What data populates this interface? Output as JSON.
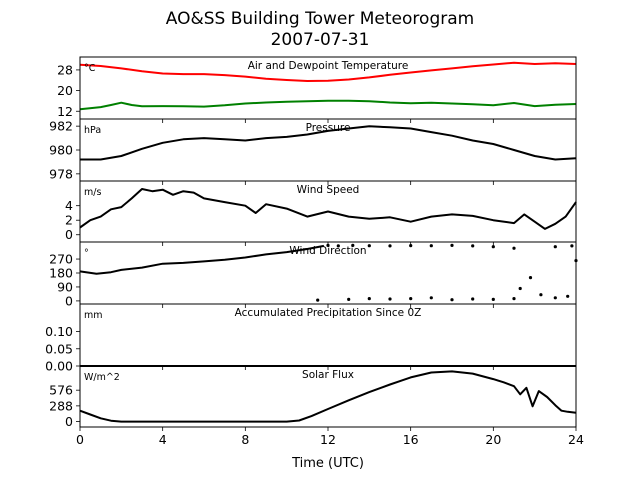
{
  "title": "AO&SS Building Tower Meteorogram",
  "subtitle": "2007-07-31",
  "xlabel": "Time (UTC)",
  "chart_data": {
    "type": "line",
    "x_range": [
      0,
      24
    ],
    "x_ticks": [
      0,
      4,
      8,
      12,
      16,
      20,
      24
    ],
    "x_tick_labels": [
      "0",
      "4",
      "8",
      "12",
      "16",
      "20",
      "24"
    ],
    "panels": [
      {
        "id": "temp",
        "title": "Air and Dewpoint Temperature",
        "unit": "°C",
        "ylim": [
          9,
          33
        ],
        "yticks": [
          12,
          20,
          28
        ],
        "ytick_labels": [
          "12",
          "20",
          "28"
        ],
        "series": [
          {
            "color": "#ff0000",
            "width": 2.0,
            "points": [
              [
                0,
                30
              ],
              [
                1,
                29.5
              ],
              [
                2,
                28.6
              ],
              [
                3,
                27.5
              ],
              [
                4,
                26.6
              ],
              [
                5,
                26.4
              ],
              [
                6,
                26.4
              ],
              [
                7,
                26.0
              ],
              [
                8,
                25.4
              ],
              [
                9,
                24.6
              ],
              [
                10,
                24.1
              ],
              [
                11,
                23.7
              ],
              [
                12,
                23.8
              ],
              [
                13,
                24.3
              ],
              [
                14,
                25.1
              ],
              [
                15,
                26.1
              ],
              [
                16,
                27.0
              ],
              [
                17,
                27.8
              ],
              [
                18,
                28.6
              ],
              [
                19,
                29.4
              ],
              [
                20,
                30.1
              ],
              [
                21,
                30.8
              ],
              [
                22,
                30.3
              ],
              [
                23,
                30.6
              ],
              [
                24,
                30.3
              ]
            ]
          },
          {
            "color": "#008000",
            "width": 2.0,
            "points": [
              [
                0,
                12.8
              ],
              [
                1,
                13.6
              ],
              [
                1.5,
                14.4
              ],
              [
                2,
                15.3
              ],
              [
                2.5,
                14.4
              ],
              [
                3,
                13.9
              ],
              [
                4,
                14.0
              ],
              [
                5,
                13.9
              ],
              [
                6,
                13.8
              ],
              [
                7,
                14.3
              ],
              [
                8,
                15.0
              ],
              [
                9,
                15.4
              ],
              [
                10,
                15.7
              ],
              [
                11,
                15.9
              ],
              [
                12,
                16.1
              ],
              [
                13,
                16.1
              ],
              [
                14,
                15.9
              ],
              [
                15,
                15.4
              ],
              [
                16,
                15.1
              ],
              [
                17,
                15.3
              ],
              [
                18,
                15.0
              ],
              [
                19,
                14.7
              ],
              [
                20,
                14.3
              ],
              [
                21,
                15.2
              ],
              [
                22,
                14.0
              ],
              [
                23,
                14.5
              ],
              [
                24,
                14.8
              ]
            ]
          }
        ]
      },
      {
        "id": "pressure",
        "title": "Pressure",
        "unit": "hPa",
        "ylim": [
          977.4,
          982.6
        ],
        "yticks": [
          978,
          980,
          982
        ],
        "ytick_labels": [
          "978",
          "980",
          "982"
        ],
        "series": [
          {
            "color": "#000000",
            "width": 2.0,
            "points": [
              [
                0,
                979.2
              ],
              [
                1,
                979.2
              ],
              [
                2,
                979.5
              ],
              [
                3,
                980.1
              ],
              [
                4,
                980.6
              ],
              [
                5,
                980.9
              ],
              [
                6,
                981.0
              ],
              [
                7,
                980.9
              ],
              [
                8,
                980.8
              ],
              [
                9,
                981.0
              ],
              [
                10,
                981.1
              ],
              [
                11,
                981.3
              ],
              [
                12,
                981.6
              ],
              [
                13,
                981.8
              ],
              [
                14,
                982.0
              ],
              [
                15,
                981.9
              ],
              [
                16,
                981.8
              ],
              [
                17,
                981.5
              ],
              [
                18,
                981.2
              ],
              [
                19,
                980.8
              ],
              [
                20,
                980.5
              ],
              [
                21,
                980.0
              ],
              [
                22,
                979.5
              ],
              [
                23,
                979.2
              ],
              [
                24,
                979.3
              ]
            ]
          }
        ]
      },
      {
        "id": "wind_speed",
        "title": "Wind Speed",
        "unit": "m/s",
        "ylim": [
          -1,
          7.4
        ],
        "yticks": [
          0,
          2,
          4
        ],
        "ytick_labels": [
          "0",
          "2",
          "4"
        ],
        "series": [
          {
            "color": "#000000",
            "width": 2.0,
            "points": [
              [
                0,
                1.0
              ],
              [
                0.5,
                2.0
              ],
              [
                1,
                2.5
              ],
              [
                1.5,
                3.5
              ],
              [
                2,
                3.8
              ],
              [
                2.5,
                5.0
              ],
              [
                3,
                6.3
              ],
              [
                3.5,
                6.0
              ],
              [
                4,
                6.2
              ],
              [
                4.5,
                5.5
              ],
              [
                5,
                6.0
              ],
              [
                5.5,
                5.8
              ],
              [
                6,
                5.0
              ],
              [
                7,
                4.5
              ],
              [
                8,
                4.0
              ],
              [
                8.5,
                3.0
              ],
              [
                9,
                4.2
              ],
              [
                10,
                3.6
              ],
              [
                11,
                2.5
              ],
              [
                12,
                3.2
              ],
              [
                13,
                2.5
              ],
              [
                14,
                2.2
              ],
              [
                15,
                2.4
              ],
              [
                16,
                1.8
              ],
              [
                17,
                2.5
              ],
              [
                18,
                2.8
              ],
              [
                19,
                2.6
              ],
              [
                20,
                2.0
              ],
              [
                21,
                1.6
              ],
              [
                21.5,
                2.8
              ],
              [
                22,
                1.8
              ],
              [
                22.5,
                0.8
              ],
              [
                23,
                1.5
              ],
              [
                23.5,
                2.5
              ],
              [
                24,
                4.5
              ]
            ]
          }
        ]
      },
      {
        "id": "wind_dir",
        "title": "Wind Direction",
        "unit": "°",
        "ylim": [
          -20,
          380
        ],
        "yticks": [
          0,
          90,
          180,
          270
        ],
        "ytick_labels": [
          "0",
          "90",
          "180",
          "270"
        ],
        "series": [
          {
            "color": "#000000",
            "width": 2.0,
            "points": [
              [
                0,
                190
              ],
              [
                0.8,
                175
              ],
              [
                1.5,
                185
              ],
              [
                2,
                200
              ],
              [
                3,
                215
              ],
              [
                4,
                240
              ],
              [
                5,
                245
              ],
              [
                6,
                255
              ],
              [
                7,
                265
              ],
              [
                8,
                280
              ],
              [
                9,
                300
              ],
              [
                10,
                315
              ],
              [
                11,
                335
              ],
              [
                11.8,
                355
              ]
            ]
          }
        ],
        "dots": [
          {
            "color": "#000000",
            "segments": [
              [
                12,
                358
              ],
              [
                12.5,
                355
              ],
              [
                13.2,
                358
              ],
              [
                14,
                356
              ],
              [
                15,
                355
              ],
              [
                16,
                357
              ],
              [
                17,
                356
              ],
              [
                18,
                358
              ],
              [
                19,
                355
              ],
              [
                20,
                350
              ],
              [
                21,
                340
              ],
              [
                23,
                350
              ],
              [
                23.8,
                355
              ]
            ]
          },
          {
            "color": "#000000",
            "segments": [
              [
                11.5,
                5
              ],
              [
                13,
                10
              ],
              [
                14,
                15
              ],
              [
                15,
                12
              ],
              [
                16,
                15
              ],
              [
                17,
                20
              ],
              [
                18,
                8
              ],
              [
                19,
                12
              ],
              [
                20,
                10
              ],
              [
                21,
                15
              ],
              [
                21.3,
                80
              ],
              [
                21.8,
                150
              ],
              [
                22.3,
                40
              ],
              [
                23,
                20
              ],
              [
                23.6,
                30
              ],
              [
                24,
                260
              ]
            ]
          }
        ]
      },
      {
        "id": "precip",
        "title": "Accumulated Precipitation Since 0Z",
        "unit": "mm",
        "ylim": [
          0,
          0.18
        ],
        "yticks": [
          0.0,
          0.05,
          0.1
        ],
        "ytick_labels": [
          "0.00",
          "0.05",
          "0.10"
        ],
        "series": [
          {
            "color": "#000000",
            "width": 2.0,
            "points": [
              [
                0,
                0
              ],
              [
                24,
                0
              ]
            ]
          }
        ]
      },
      {
        "id": "solar",
        "title": "Solar Flux",
        "unit": "W/m^2",
        "ylim": [
          -100,
          1020
        ],
        "yticks": [
          0,
          288,
          576
        ],
        "ytick_labels": [
          "0",
          "288",
          "576"
        ],
        "series": [
          {
            "color": "#000000",
            "width": 2.0,
            "points": [
              [
                0,
                200
              ],
              [
                0.5,
                130
              ],
              [
                1,
                60
              ],
              [
                1.5,
                15
              ],
              [
                2,
                0
              ],
              [
                10,
                0
              ],
              [
                10.6,
                20
              ],
              [
                11.2,
                100
              ],
              [
                12,
                230
              ],
              [
                13,
                390
              ],
              [
                14,
                540
              ],
              [
                15,
                680
              ],
              [
                16,
                810
              ],
              [
                17,
                900
              ],
              [
                18,
                920
              ],
              [
                19,
                880
              ],
              [
                20,
                780
              ],
              [
                20.5,
                720
              ],
              [
                21,
                650
              ],
              [
                21.3,
                500
              ],
              [
                21.6,
                620
              ],
              [
                21.9,
                280
              ],
              [
                22.2,
                560
              ],
              [
                22.6,
                450
              ],
              [
                23,
                300
              ],
              [
                23.3,
                200
              ],
              [
                23.6,
                180
              ],
              [
                24,
                160
              ]
            ]
          }
        ]
      }
    ]
  }
}
